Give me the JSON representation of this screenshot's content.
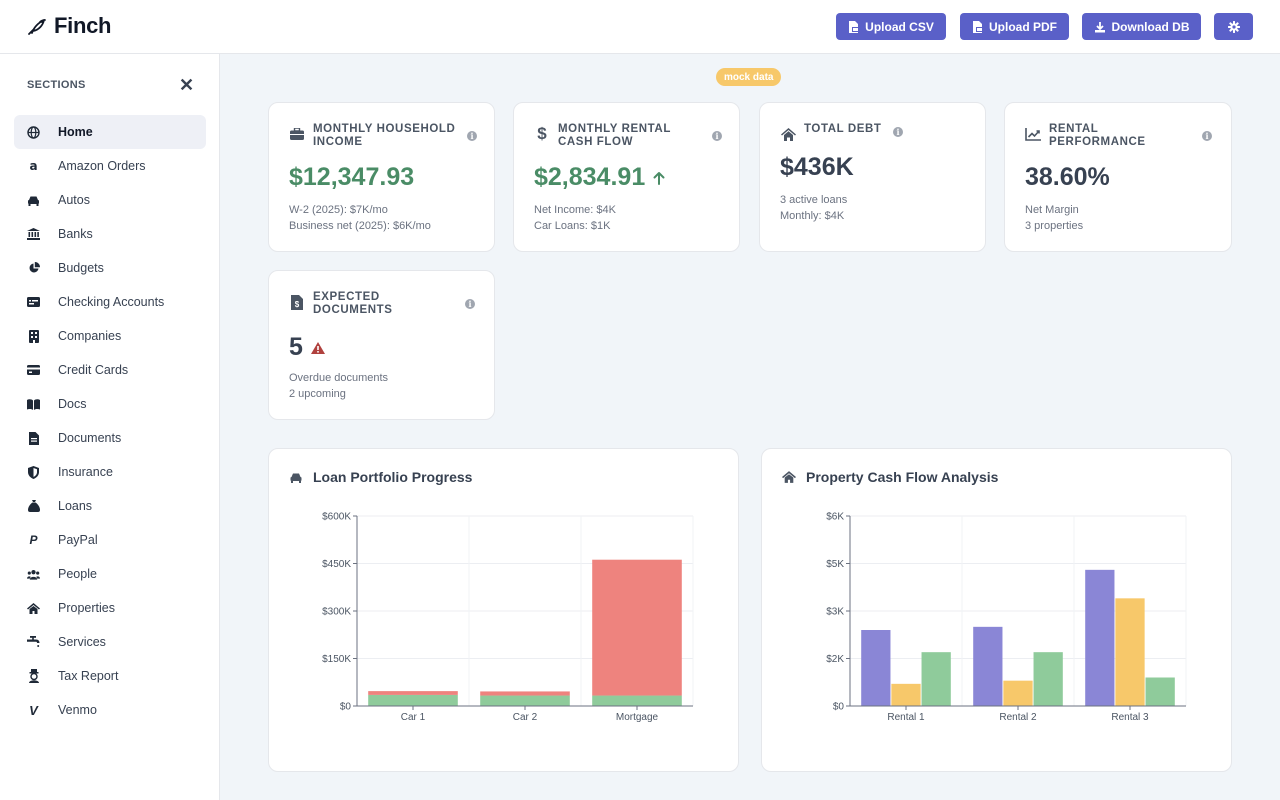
{
  "app": {
    "name": "Finch"
  },
  "header": {
    "upload_csv": "Upload CSV",
    "upload_pdf": "Upload PDF",
    "download_db": "Download DB",
    "settings_icon": "gear-icon"
  },
  "sidebar": {
    "title": "SECTIONS",
    "close_icon": "close-icon",
    "items": [
      {
        "label": "Home",
        "icon": "globe-icon",
        "active": true
      },
      {
        "label": "Amazon Orders",
        "icon": "amazon-icon"
      },
      {
        "label": "Autos",
        "icon": "car-icon"
      },
      {
        "label": "Banks",
        "icon": "bank-icon"
      },
      {
        "label": "Budgets",
        "icon": "pie-icon"
      },
      {
        "label": "Checking Accounts",
        "icon": "card-icon"
      },
      {
        "label": "Companies",
        "icon": "building-icon"
      },
      {
        "label": "Credit Cards",
        "icon": "credit-card-icon"
      },
      {
        "label": "Docs",
        "icon": "book-icon"
      },
      {
        "label": "Documents",
        "icon": "file-icon"
      },
      {
        "label": "Insurance",
        "icon": "shield-icon"
      },
      {
        "label": "Loans",
        "icon": "bag-icon"
      },
      {
        "label": "PayPal",
        "icon": "paypal-icon"
      },
      {
        "label": "People",
        "icon": "people-icon"
      },
      {
        "label": "Properties",
        "icon": "house-icon"
      },
      {
        "label": "Services",
        "icon": "faucet-icon"
      },
      {
        "label": "Tax Report",
        "icon": "tax-icon"
      },
      {
        "label": "Venmo",
        "icon": "venmo-icon"
      }
    ]
  },
  "badge": "mock data",
  "cards": {
    "income": {
      "title": "MONTHLY HOUSEHOLD INCOME",
      "value": "$12,347.93",
      "sub1": "W-2 (2025): $7K/mo",
      "sub2": "Business net (2025): $6K/mo"
    },
    "rental_cash": {
      "title": "MONTHLY RENTAL CASH FLOW",
      "value": "$2,834.91",
      "sub1": "Net Income: $4K",
      "sub2": "Car Loans: $1K"
    },
    "debt": {
      "title": "TOTAL DEBT",
      "value": "$436K",
      "sub1": "3 active loans",
      "sub2": "Monthly: $4K"
    },
    "rental_perf": {
      "title": "RENTAL PERFORMANCE",
      "value": "38.60%",
      "sub1": "Net Margin",
      "sub2": "3 properties"
    },
    "documents": {
      "title": "EXPECTED DOCUMENTS",
      "value": "5",
      "sub1": "Overdue documents",
      "sub2": "2 upcoming"
    }
  },
  "colors": {
    "accent": "#5a60c8",
    "green": "#4a8c66",
    "red": "#ee837e",
    "bar_green": "#8fcb9b",
    "purple": "#8a86d6",
    "yellow": "#f7c86a",
    "badge": "#f7c86a"
  },
  "chart_data": [
    {
      "type": "bar",
      "title": "Loan Portfolio Progress",
      "stacked": true,
      "categories": [
        "Car 1",
        "Car 2",
        "Mortgage"
      ],
      "series": [
        {
          "values": [
            35000,
            33000,
            33000
          ],
          "color": "#8fcb9b"
        },
        {
          "values": [
            12000,
            13000,
            429000
          ],
          "color": "#ee837e"
        }
      ],
      "yticks": [
        "$0",
        "$150K",
        "$300K",
        "$450K",
        "$600K"
      ],
      "ylim": [
        0,
        600000
      ],
      "grid": true
    },
    {
      "type": "bar",
      "title": "Property Cash Flow Analysis",
      "categories": [
        "Rental 1",
        "Rental 2",
        "Rental 3"
      ],
      "series": [
        {
          "values": [
            2400,
            2500,
            4300
          ],
          "color": "#8a86d6"
        },
        {
          "values": [
            700,
            800,
            3400
          ],
          "color": "#f7c86a"
        },
        {
          "values": [
            1700,
            1700,
            900
          ],
          "color": "#8fcb9b"
        }
      ],
      "yticks": [
        "$0",
        "$2K",
        "$3K",
        "$5K",
        "$6K"
      ],
      "ylim": [
        0,
        6000
      ],
      "grid": true
    }
  ]
}
